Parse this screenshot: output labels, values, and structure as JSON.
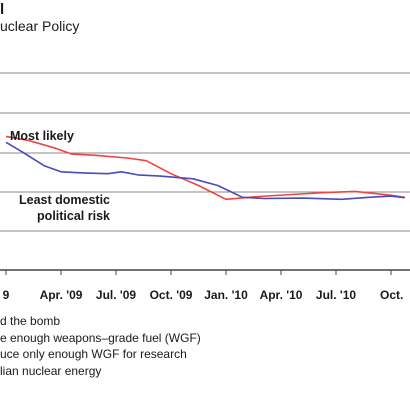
{
  "header": {
    "title_fragment": "l",
    "subtitle": "uclear Policy"
  },
  "chart_data": {
    "type": "line",
    "title": "",
    "xlabel": "",
    "ylabel": "",
    "x_ticks": [
      "9",
      "Apr. '09",
      "Jul. '09",
      "Oct. '09",
      "Jan. '10",
      "Apr. '10",
      "Jul. '10",
      "Oct."
    ],
    "grid": true,
    "colors": {
      "most_likely": "#ee4444",
      "least_risk": "#4a4ab8",
      "grid": "#8a8a8a",
      "axis": "#444444"
    },
    "series": [
      {
        "name": "Most likely",
        "points": [
          [
            0.0,
            3.4
          ],
          [
            0.4,
            3.3
          ],
          [
            0.9,
            3.1
          ],
          [
            1.2,
            2.95
          ],
          [
            1.6,
            2.92
          ],
          [
            2.2,
            2.85
          ],
          [
            2.55,
            2.78
          ],
          [
            3.0,
            2.45
          ],
          [
            3.5,
            2.15
          ],
          [
            4.0,
            1.8
          ],
          [
            4.6,
            1.87
          ],
          [
            5.2,
            1.92
          ],
          [
            5.8,
            1.97
          ],
          [
            6.35,
            2.0
          ],
          [
            7.0,
            1.9
          ],
          [
            7.25,
            1.85
          ]
        ]
      },
      {
        "name": "Least domestic political risk",
        "points": [
          [
            0.0,
            3.25
          ],
          [
            0.3,
            3.0
          ],
          [
            0.7,
            2.65
          ],
          [
            1.0,
            2.5
          ],
          [
            1.4,
            2.47
          ],
          [
            1.85,
            2.45
          ],
          [
            2.1,
            2.5
          ],
          [
            2.4,
            2.42
          ],
          [
            2.8,
            2.39
          ],
          [
            3.4,
            2.32
          ],
          [
            3.85,
            2.15
          ],
          [
            4.3,
            1.85
          ],
          [
            4.7,
            1.82
          ],
          [
            5.4,
            1.83
          ],
          [
            6.1,
            1.8
          ],
          [
            6.6,
            1.85
          ],
          [
            7.0,
            1.88
          ],
          [
            7.25,
            1.84
          ]
        ]
      }
    ],
    "annotations": {
      "most_likely": "Most likely",
      "least_risk_line1": "Least domestic",
      "least_risk_line2": "political risk"
    }
  },
  "legend": {
    "items": [
      "d the bomb",
      "e enough weapons–grade fuel (WGF)",
      "uce only enough WGF for research",
      "lian nuclear energy"
    ]
  }
}
